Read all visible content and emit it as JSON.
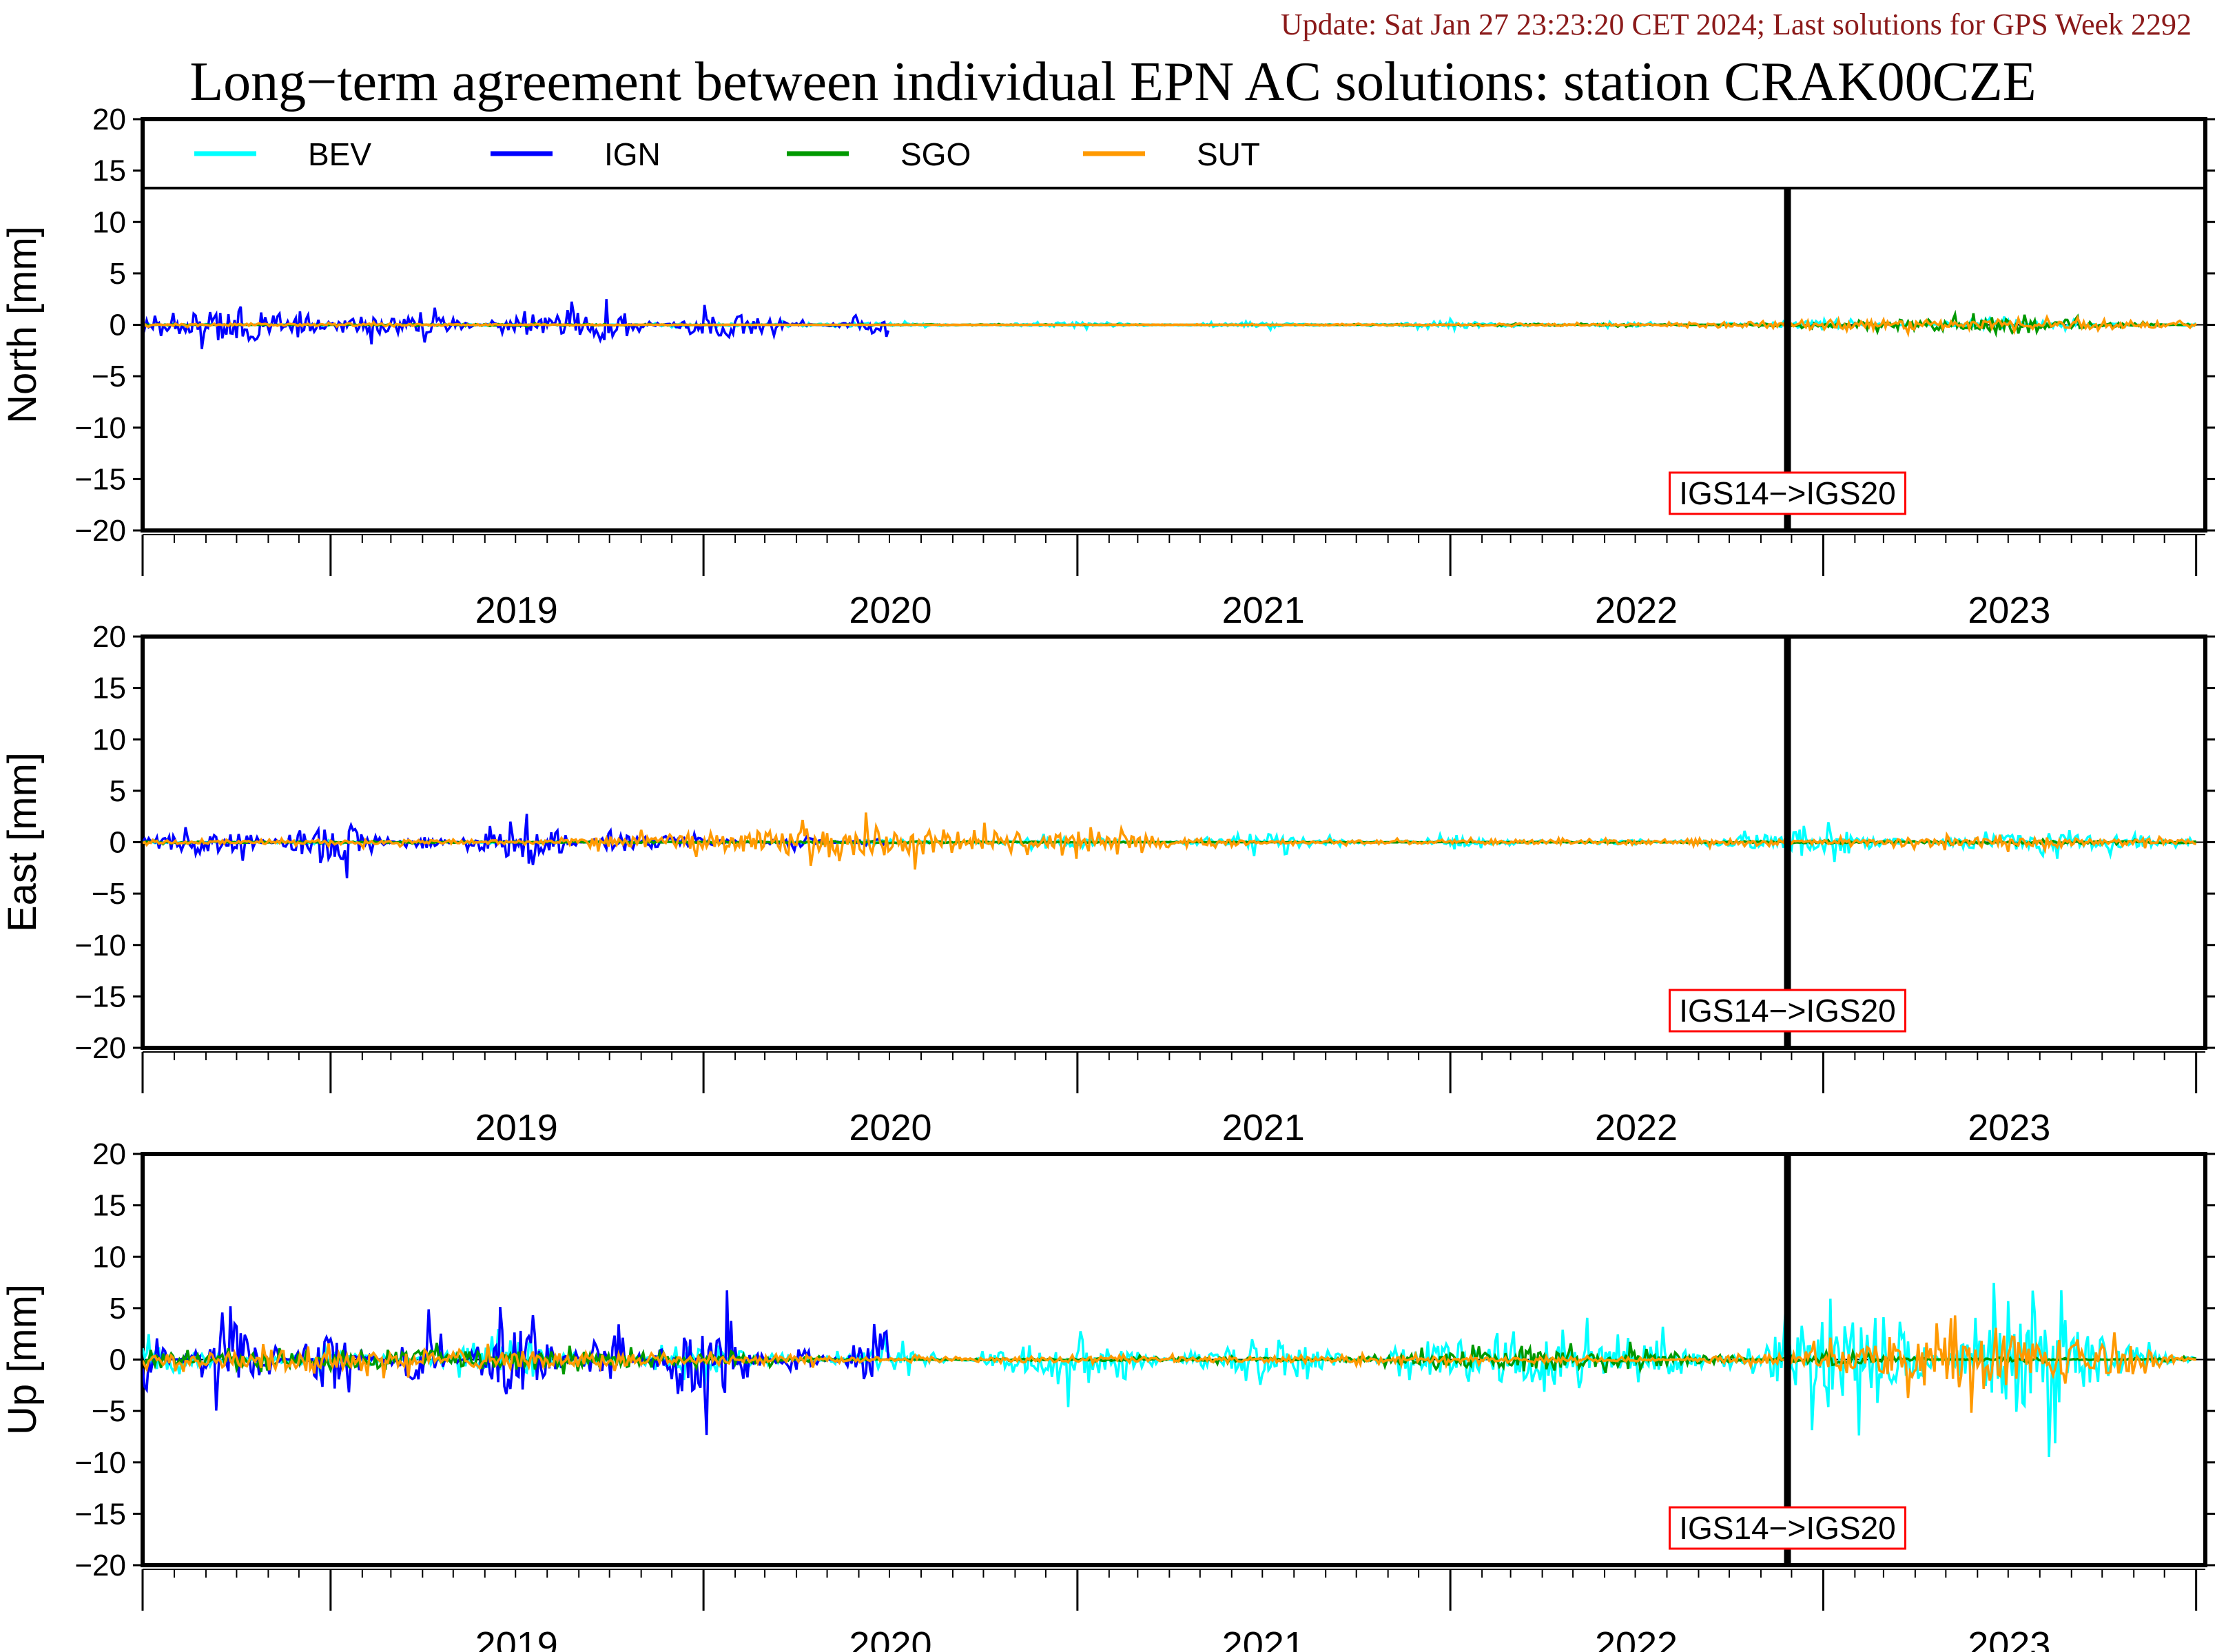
{
  "header": {
    "update_text": "Update: Sat Jan 27 23:23:20 CET 2024; Last solutions for GPS Week 2292",
    "title": "Long−term agreement between individual EPN AC solutions: station CRAK00CZE"
  },
  "chart_data": {
    "type": "line",
    "title": "Long−term agreement between individual EPN AC solutions: station CRAK00CZE",
    "x_ticks": [
      "2019",
      "2020",
      "2021",
      "2022",
      "2023"
    ],
    "xlim": [
      "2018-07-01",
      "2024-01-10"
    ],
    "frame_change": {
      "date": "2022-11-27",
      "label": "IGS14−>IGS20"
    },
    "y_ticks": [
      20,
      15,
      10,
      5,
      0,
      -5,
      -10,
      -15,
      -20
    ],
    "legend": {
      "placement": "top",
      "entries": [
        {
          "name": "BEV",
          "color": "#00ffff"
        },
        {
          "name": "IGN",
          "color": "#0000ff"
        },
        {
          "name": "SGO",
          "color": "#009900"
        },
        {
          "name": "SUT",
          "color": "#ff9900"
        }
      ]
    },
    "panels": [
      {
        "ylabel": "North [mm]",
        "ylim": [
          -20,
          20
        ],
        "series": [
          {
            "name": "BEV",
            "color": "#00ffff",
            "x": [
              "2018-07-01",
              "2019-01-01",
              "2019-07-01",
              "2020-01-01",
              "2020-07-01",
              "2021-01-01",
              "2021-07-01",
              "2022-01-01",
              "2022-07-01",
              "2023-01-01",
              "2023-07-01",
              "2024-01-01"
            ],
            "y": [
              -0.3,
              0.2,
              -0.2,
              0.3,
              0.4,
              -0.5,
              0.5,
              -0.6,
              0.4,
              -0.8,
              0.9,
              -0.3
            ]
          },
          {
            "name": "IGN",
            "color": "#0000ff",
            "x": [
              "2018-07-01",
              "2018-10-01",
              "2019-01-01",
              "2019-04-01",
              "2019-07-01",
              "2019-10-01",
              "2020-01-01",
              "2020-04-01",
              "2020-07-01"
            ],
            "y": [
              0.8,
              3.8,
              1.5,
              2.2,
              -1.5,
              -3.0,
              2.4,
              0.6,
              -1.8
            ]
          },
          {
            "name": "SGO",
            "color": "#009900",
            "x": [
              "2018-07-01",
              "2019-07-01",
              "2020-07-01",
              "2021-07-01",
              "2022-07-01",
              "2023-01-01",
              "2023-07-01",
              "2024-01-01"
            ],
            "y": [
              0.1,
              -0.2,
              0.1,
              0.0,
              0.2,
              -0.4,
              -1.4,
              0.2
            ]
          },
          {
            "name": "SUT",
            "color": "#ff9900",
            "x": [
              "2018-07-01",
              "2019-01-01",
              "2019-07-01",
              "2020-07-01",
              "2021-07-01",
              "2022-07-01",
              "2023-01-01",
              "2023-07-01",
              "2024-01-01"
            ],
            "y": [
              0.2,
              0.3,
              0.1,
              0.0,
              0.1,
              0.2,
              0.8,
              1.0,
              0.5
            ]
          }
        ]
      },
      {
        "ylabel": "East [mm]",
        "ylim": [
          -20,
          20
        ],
        "series": [
          {
            "name": "BEV",
            "color": "#00ffff",
            "x": [
              "2018-07-01",
              "2019-01-01",
              "2019-07-01",
              "2020-01-01",
              "2020-07-01",
              "2021-01-01",
              "2021-07-01",
              "2022-01-01",
              "2022-07-01",
              "2023-01-01",
              "2023-07-01",
              "2024-01-01"
            ],
            "y": [
              0.2,
              -0.4,
              0.3,
              -0.2,
              0.4,
              -1.0,
              1.5,
              -0.8,
              0.5,
              -2.5,
              2.0,
              0.5
            ]
          },
          {
            "name": "IGN",
            "color": "#0000ff",
            "x": [
              "2018-07-01",
              "2018-10-01",
              "2019-01-01",
              "2019-04-01",
              "2019-07-01",
              "2019-10-01",
              "2020-01-01",
              "2020-04-01",
              "2020-07-01"
            ],
            "y": [
              -1.2,
              -2.5,
              4.8,
              -2.0,
              3.8,
              -1.5,
              -0.8,
              1.0,
              -1.0
            ]
          },
          {
            "name": "SGO",
            "color": "#009900",
            "x": [
              "2018-07-01",
              "2019-07-01",
              "2020-07-01",
              "2021-07-01",
              "2022-07-01",
              "2023-01-01",
              "2023-07-01",
              "2024-01-01"
            ],
            "y": [
              0.2,
              0.1,
              0.2,
              0.0,
              0.1,
              0.2,
              0.3,
              0.2
            ]
          },
          {
            "name": "SUT",
            "color": "#ff9900",
            "x": [
              "2018-07-01",
              "2019-01-01",
              "2019-07-01",
              "2020-07-01",
              "2021-07-01",
              "2022-07-01",
              "2023-01-01",
              "2023-07-01",
              "2024-01-01"
            ],
            "y": [
              0.3,
              0.5,
              0.4,
              2.8,
              0.3,
              0.4,
              0.5,
              1.0,
              0.5
            ]
          }
        ]
      },
      {
        "ylabel": "Up [mm]",
        "ylim": [
          -20,
          20
        ],
        "series": [
          {
            "name": "BEV",
            "color": "#00ffff",
            "x": [
              "2018-07-01",
              "2019-01-01",
              "2019-07-01",
              "2020-01-01",
              "2020-07-01",
              "2021-01-01",
              "2021-07-01",
              "2022-01-01",
              "2022-07-01",
              "2022-12-01",
              "2023-03-01",
              "2023-07-01",
              "2024-01-01"
            ],
            "y": [
              3.0,
              -2.0,
              3.5,
              -3.0,
              2.5,
              -4.5,
              4.5,
              -4.0,
              -5.0,
              5.0,
              10.0,
              -11.0,
              1.0
            ]
          },
          {
            "name": "IGN",
            "color": "#0000ff",
            "x": [
              "2018-07-01",
              "2018-10-01",
              "2019-01-01",
              "2019-04-01",
              "2019-07-01",
              "2019-10-01",
              "2020-01-01",
              "2020-04-01",
              "2020-07-01"
            ],
            "y": [
              -4.0,
              7.0,
              -6.0,
              5.5,
              -8.5,
              6.0,
              -9.0,
              3.0,
              -5.0
            ]
          },
          {
            "name": "SGO",
            "color": "#009900",
            "x": [
              "2018-07-01",
              "2019-07-01",
              "2020-07-01",
              "2021-07-01",
              "2022-01-01",
              "2022-07-01",
              "2023-01-01",
              "2023-07-01",
              "2024-01-01"
            ],
            "y": [
              -1.0,
              -2.0,
              0.0,
              -0.5,
              1.5,
              2.0,
              -1.0,
              0.5,
              -0.5
            ]
          },
          {
            "name": "SUT",
            "color": "#ff9900",
            "x": [
              "2018-07-01",
              "2019-01-01",
              "2019-07-01",
              "2020-07-01",
              "2021-07-01",
              "2022-07-01",
              "2023-01-01",
              "2023-07-01",
              "2024-01-01"
            ],
            "y": [
              1.0,
              2.0,
              1.5,
              0.5,
              0.5,
              0.5,
              -2.0,
              -6.0,
              0.0
            ]
          }
        ]
      }
    ]
  }
}
